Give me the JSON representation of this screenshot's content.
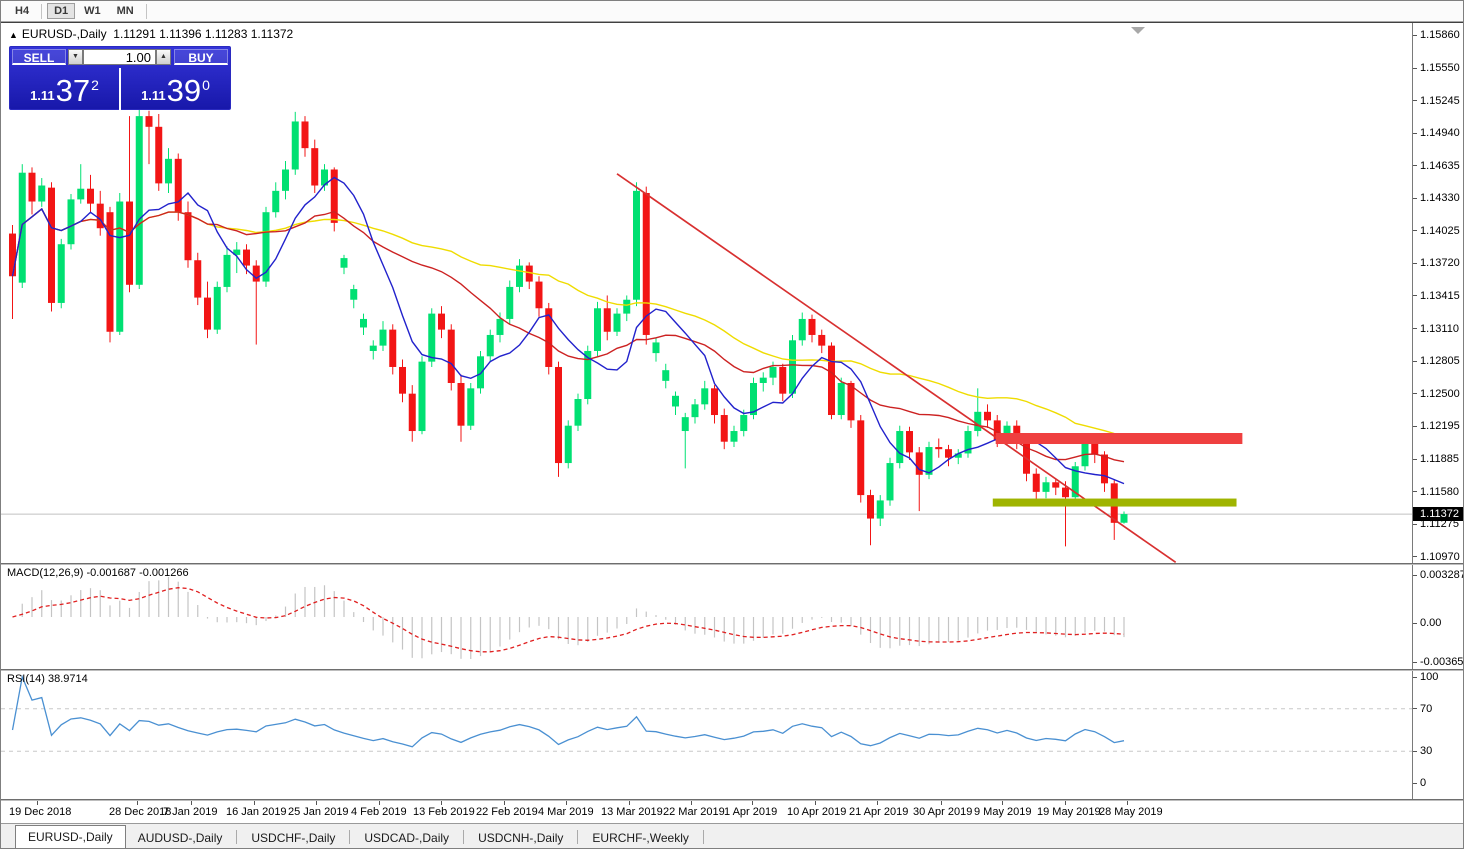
{
  "toolbar": {
    "timeframes": [
      {
        "label": "H4",
        "active": false
      },
      {
        "label": "D1",
        "active": true
      },
      {
        "label": "W1",
        "active": false
      },
      {
        "label": "MN",
        "active": false
      }
    ]
  },
  "chart": {
    "collapse_arrow": "▲",
    "symbol": "EURUSD-,Daily",
    "ohlc": "1.11291 1.11396 1.11283 1.11372"
  },
  "trade_panel": {
    "sell_label": "SELL",
    "buy_label": "BUY",
    "volume": "1.00",
    "spin_down_icon": "▼",
    "spin_up_icon": "▲",
    "sell_price": {
      "small": "1.11",
      "big": "37",
      "sup": "2"
    },
    "buy_price": {
      "small": "1.11",
      "big": "39",
      "sup": "0"
    }
  },
  "price_scale": {
    "labels": [
      "1.15860",
      "1.15550",
      "1.15245",
      "1.14940",
      "1.14635",
      "1.14330",
      "1.14025",
      "1.13720",
      "1.13415",
      "1.13110",
      "1.12805",
      "1.12500",
      "1.12195",
      "1.11885",
      "1.11580",
      "1.11275",
      "1.10970"
    ],
    "current": "1.11372"
  },
  "macd_panel": {
    "label": "MACD(12,26,9) -0.001687 -0.001266",
    "scale": [
      "0.003287",
      "0.00",
      "-0.003659"
    ]
  },
  "rsi_panel": {
    "label": "RSI(14) 38.9714",
    "scale": [
      "100",
      "70",
      "30",
      "0"
    ]
  },
  "time_axis": {
    "labels": [
      "19 Dec 2018",
      "28 Dec 2018",
      "7 Jan 2019",
      "16 Jan 2019",
      "25 Jan 2019",
      "4 Feb 2019",
      "13 Feb 2019",
      "22 Feb 2019",
      "4 Mar 2019",
      "13 Mar 2019",
      "22 Mar 2019",
      "1 Apr 2019",
      "10 Apr 2019",
      "21 Apr 2019",
      "30 Apr 2019",
      "9 May 2019",
      "19 May 2019",
      "28 May 2019"
    ]
  },
  "tabs": [
    {
      "label": "EURUSD-,Daily",
      "active": true
    },
    {
      "label": "AUDUSD-,Daily",
      "active": false
    },
    {
      "label": "USDCHF-,Daily",
      "active": false
    },
    {
      "label": "USDCAD-,Daily",
      "active": false
    },
    {
      "label": "USDCNH-,Daily",
      "active": false
    },
    {
      "label": "EURCHF-,Weekly",
      "active": false
    }
  ],
  "colors": {
    "bull": "#00E072",
    "bear": "#F21515",
    "ma_fast": "#2222CC",
    "ma_mid": "#CC2222",
    "ma_slow": "#EFDC00",
    "macd_hist": "#C4C4C4",
    "macd_signal": "#E02020",
    "rsi_line": "#4A90D2",
    "level_dash": "#C8C8C8",
    "trendline": "#D83030",
    "resistance": "#EF4040",
    "support": "#9FB400",
    "price_line": "#C0C0C0",
    "badge_bg": "#000000",
    "badge_fg": "#FFFFFF"
  },
  "chart_data": {
    "type": "candlestick",
    "symbol": "EURUSD-",
    "timeframe": "Daily",
    "title": "EURUSD-,Daily",
    "current_bar": {
      "open": "1.11291",
      "high": "1.11396",
      "low": "1.11283",
      "close": "1.11372"
    },
    "y_axis_range": [
      1.10904,
      1.15954
    ],
    "x_labels": [
      "19 Dec 2018",
      "28 Dec 2018",
      "7 Jan 2019",
      "16 Jan 2019",
      "25 Jan 2019",
      "4 Feb 2019",
      "13 Feb 2019",
      "22 Feb 2019",
      "4 Mar 2019",
      "13 Mar 2019",
      "22 Mar 2019",
      "1 Apr 2019",
      "10 Apr 2019",
      "21 Apr 2019",
      "30 Apr 2019",
      "9 May 2019",
      "19 May 2019",
      "28 May 2019"
    ],
    "candles": [
      [
        1.14,
        1.1408,
        1.132,
        1.136
      ],
      [
        1.1354,
        1.1465,
        1.1349,
        1.1457
      ],
      [
        1.1457,
        1.1462,
        1.1418,
        1.143
      ],
      [
        1.143,
        1.1452,
        1.1425,
        1.1445
      ],
      [
        1.1443,
        1.1448,
        1.1327,
        1.1335
      ],
      [
        1.1335,
        1.1395,
        1.133,
        1.139
      ],
      [
        1.139,
        1.1437,
        1.1385,
        1.1432
      ],
      [
        1.1432,
        1.1465,
        1.1428,
        1.1442
      ],
      [
        1.1442,
        1.1455,
        1.142,
        1.1428
      ],
      [
        1.1428,
        1.144,
        1.1398,
        1.1405
      ],
      [
        1.142,
        1.1425,
        1.1298,
        1.1308
      ],
      [
        1.1308,
        1.1438,
        1.1305,
        1.143
      ],
      [
        1.143,
        1.151,
        1.1345,
        1.1352
      ],
      [
        1.1352,
        1.1516,
        1.1348,
        1.151
      ],
      [
        1.151,
        1.1515,
        1.1465,
        1.15
      ],
      [
        1.15,
        1.1512,
        1.144,
        1.1447
      ],
      [
        1.1447,
        1.148,
        1.1438,
        1.147
      ],
      [
        1.147,
        1.1475,
        1.1412,
        1.142
      ],
      [
        1.142,
        1.143,
        1.1368,
        1.1375
      ],
      [
        1.1375,
        1.1382,
        1.1333,
        1.134
      ],
      [
        1.134,
        1.1355,
        1.1302,
        1.131
      ],
      [
        1.131,
        1.1355,
        1.1306,
        1.135
      ],
      [
        1.135,
        1.1388,
        1.1345,
        1.138
      ],
      [
        1.138,
        1.1392,
        1.1363,
        1.1385
      ],
      [
        1.1385,
        1.139,
        1.1362,
        1.137
      ],
      [
        1.137,
        1.1375,
        1.1296,
        1.1355
      ],
      [
        1.1355,
        1.1425,
        1.135,
        1.142
      ],
      [
        1.142,
        1.1448,
        1.1415,
        1.144
      ],
      [
        1.144,
        1.1468,
        1.1432,
        1.146
      ],
      [
        1.146,
        1.1514,
        1.1455,
        1.1505
      ],
      [
        1.1505,
        1.151,
        1.1472,
        1.148
      ],
      [
        1.148,
        1.1488,
        1.1438,
        1.1445
      ],
      [
        1.1445,
        1.1465,
        1.144,
        1.146
      ],
      [
        1.146,
        1.1462,
        1.1402,
        1.141
      ],
      [
        1.1368,
        1.138,
        1.1362,
        1.1377
      ],
      [
        1.1338,
        1.1352,
        1.133,
        1.1348
      ],
      [
        1.1312,
        1.1325,
        1.1305,
        1.132
      ],
      [
        1.129,
        1.13,
        1.1282,
        1.1295
      ],
      [
        1.1295,
        1.1318,
        1.129,
        1.131
      ],
      [
        1.131,
        1.1315,
        1.1268,
        1.1275
      ],
      [
        1.1275,
        1.1282,
        1.1242,
        1.125
      ],
      [
        1.125,
        1.1258,
        1.1205,
        1.1215
      ],
      [
        1.1215,
        1.1285,
        1.1212,
        1.128
      ],
      [
        1.128,
        1.133,
        1.1275,
        1.1325
      ],
      [
        1.1325,
        1.1332,
        1.1302,
        1.131
      ],
      [
        1.131,
        1.1315,
        1.1253,
        1.126
      ],
      [
        1.126,
        1.1268,
        1.1205,
        1.122
      ],
      [
        1.122,
        1.126,
        1.1216,
        1.1255
      ],
      [
        1.1255,
        1.129,
        1.125,
        1.1285
      ],
      [
        1.1285,
        1.131,
        1.128,
        1.1305
      ],
      [
        1.1305,
        1.1326,
        1.1298,
        1.132
      ],
      [
        1.132,
        1.1356,
        1.1315,
        1.135
      ],
      [
        1.135,
        1.1376,
        1.1345,
        1.137
      ],
      [
        1.137,
        1.1373,
        1.1348,
        1.1355
      ],
      [
        1.1355,
        1.136,
        1.1322,
        1.133
      ],
      [
        1.133,
        1.1335,
        1.1268,
        1.1275
      ],
      [
        1.1275,
        1.128,
        1.1172,
        1.1185
      ],
      [
        1.1185,
        1.1225,
        1.118,
        1.122
      ],
      [
        1.122,
        1.125,
        1.1215,
        1.1245
      ],
      [
        1.1245,
        1.1295,
        1.124,
        1.129
      ],
      [
        1.129,
        1.1336,
        1.1285,
        1.133
      ],
      [
        1.133,
        1.1342,
        1.13,
        1.1308
      ],
      [
        1.1308,
        1.133,
        1.1304,
        1.1325
      ],
      [
        1.1325,
        1.1342,
        1.1318,
        1.1338
      ],
      [
        1.1338,
        1.1448,
        1.1332,
        1.144
      ],
      [
        1.1438,
        1.1444,
        1.1296,
        1.1305
      ],
      [
        1.1288,
        1.1302,
        1.128,
        1.1298
      ],
      [
        1.1262,
        1.1278,
        1.1255,
        1.1272
      ],
      [
        1.1238,
        1.1252,
        1.123,
        1.1248
      ],
      [
        1.1215,
        1.1232,
        1.118,
        1.1228
      ],
      [
        1.1228,
        1.1245,
        1.1222,
        1.124
      ],
      [
        1.124,
        1.1262,
        1.1235,
        1.1255
      ],
      [
        1.1255,
        1.1258,
        1.1222,
        1.123
      ],
      [
        1.123,
        1.1236,
        1.1198,
        1.1205
      ],
      [
        1.1205,
        1.122,
        1.12,
        1.1215
      ],
      [
        1.1215,
        1.1235,
        1.121,
        1.123
      ],
      [
        1.123,
        1.1265,
        1.1226,
        1.126
      ],
      [
        1.126,
        1.127,
        1.1252,
        1.1265
      ],
      [
        1.1265,
        1.128,
        1.1258,
        1.1275
      ],
      [
        1.1275,
        1.1278,
        1.1243,
        1.125
      ],
      [
        1.125,
        1.1305,
        1.1246,
        1.13
      ],
      [
        1.13,
        1.1326,
        1.1295,
        1.132
      ],
      [
        1.132,
        1.1324,
        1.1298,
        1.1305
      ],
      [
        1.1305,
        1.131,
        1.1288,
        1.1295
      ],
      [
        1.1295,
        1.1298,
        1.1226,
        1.123
      ],
      [
        1.123,
        1.1265,
        1.1226,
        1.126
      ],
      [
        1.126,
        1.1262,
        1.1218,
        1.1225
      ],
      [
        1.1225,
        1.123,
        1.1148,
        1.1155
      ],
      [
        1.1155,
        1.116,
        1.1108,
        1.1133
      ],
      [
        1.1133,
        1.1155,
        1.1126,
        1.115
      ],
      [
        1.115,
        1.119,
        1.1145,
        1.1185
      ],
      [
        1.1185,
        1.122,
        1.118,
        1.1215
      ],
      [
        1.1215,
        1.1219,
        1.1188,
        1.1195
      ],
      [
        1.1195,
        1.12,
        1.114,
        1.1174
      ],
      [
        1.1174,
        1.1205,
        1.117,
        1.12
      ],
      [
        1.12,
        1.1208,
        1.119,
        1.1198
      ],
      [
        1.1198,
        1.1202,
        1.1182,
        1.119
      ],
      [
        1.119,
        1.1198,
        1.1184,
        1.1194
      ],
      [
        1.1194,
        1.122,
        1.119,
        1.1215
      ],
      [
        1.1215,
        1.1255,
        1.121,
        1.1233
      ],
      [
        1.1233,
        1.124,
        1.1218,
        1.1225
      ],
      [
        1.1225,
        1.123,
        1.12,
        1.1206
      ],
      [
        1.1206,
        1.1224,
        1.1202,
        1.122
      ],
      [
        1.122,
        1.1225,
        1.1198,
        1.1205
      ],
      [
        1.1205,
        1.121,
        1.1168,
        1.1175
      ],
      [
        1.1175,
        1.118,
        1.115,
        1.1158
      ],
      [
        1.1158,
        1.1172,
        1.1152,
        1.1167
      ],
      [
        1.1167,
        1.117,
        1.1155,
        1.1162
      ],
      [
        1.1162,
        1.1168,
        1.1107,
        1.1153
      ],
      [
        1.1153,
        1.1186,
        1.1148,
        1.1182
      ],
      [
        1.1182,
        1.1208,
        1.1178,
        1.1204
      ],
      [
        1.1204,
        1.121,
        1.1185,
        1.1193
      ],
      [
        1.1193,
        1.1196,
        1.1158,
        1.1166
      ],
      [
        1.1166,
        1.117,
        1.1113,
        1.1129
      ],
      [
        1.11291,
        1.11396,
        1.11283,
        1.11372
      ]
    ],
    "moving_averages": [
      {
        "name": "MA fast",
        "period": 8
      },
      {
        "name": "MA medium",
        "period": 21
      },
      {
        "name": "MA slow",
        "period": 45
      }
    ],
    "objects": {
      "trendline": {
        "from_index": 62,
        "from_price": 1.1456,
        "to_index": 119.3,
        "to_price": 1.1092
      },
      "resistance_line": {
        "price": 1.1208,
        "from_index": 101.2,
        "to_index": 126.5,
        "thickness": 11
      },
      "support_line": {
        "price": 1.1148,
        "from_index": 100.9,
        "to_index": 125.9,
        "thickness": 8
      }
    },
    "indicators": {
      "macd": {
        "params": [
          12,
          26,
          9
        ],
        "main_value": -0.001687,
        "signal_value": -0.001266,
        "scale": [
          0.003287,
          0.0,
          -0.003659
        ]
      },
      "rsi": {
        "period": 14,
        "value": 38.9714,
        "levels": [
          70,
          30
        ],
        "scale": [
          100,
          70,
          30,
          0
        ]
      }
    },
    "current_price": 1.11372
  }
}
